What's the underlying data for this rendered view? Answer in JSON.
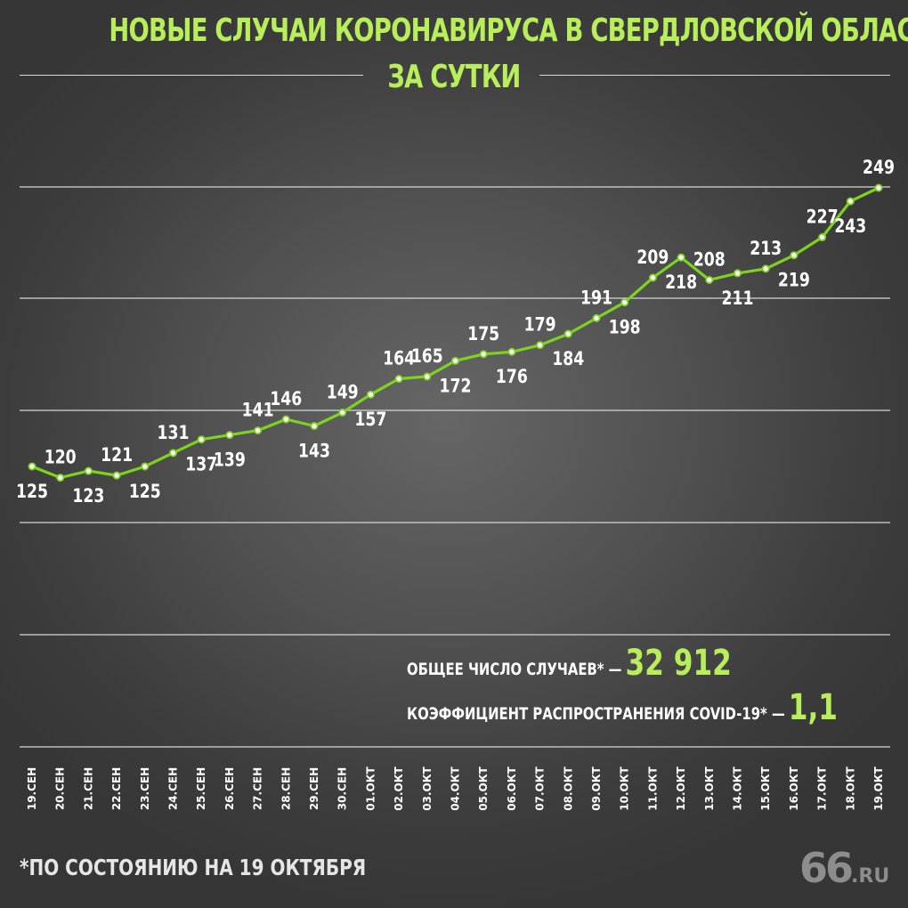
{
  "title": {
    "line1": "НОВЫЕ СЛУЧАИ КОРОНАВИРУСА В СВЕРДЛОВСКОЙ ОБЛАСТИ",
    "line2": "ЗА СУТКИ"
  },
  "chart_data": {
    "type": "line",
    "title": "НОВЫЕ СЛУЧАИ КОРОНАВИРУСА В СВЕРДЛОВСКОЙ ОБЛАСТИ ЗА СУТКИ",
    "xlabel": "",
    "ylabel": "",
    "categories": [
      "19.СЕН",
      "20.СЕН",
      "21.СЕН",
      "22.СЕН",
      "23.СЕН",
      "24.СЕН",
      "25.СЕН",
      "26.СЕН",
      "27.СЕН",
      "28.СЕН",
      "29.СЕН",
      "30.СЕН",
      "01.ОКТ",
      "02.ОКТ",
      "03.ОКТ",
      "04.ОКТ",
      "05.ОКТ",
      "06.ОКТ",
      "07.ОКТ",
      "08.ОКТ",
      "09.ОКТ",
      "10.ОКТ",
      "11.ОКТ",
      "12.ОКТ",
      "13.ОКТ",
      "14.ОКТ",
      "15.ОКТ",
      "16.ОКТ",
      "17.ОКТ",
      "18.ОКТ",
      "19.ОКТ"
    ],
    "series": [
      {
        "values": [
          125,
          120,
          123,
          121,
          125,
          131,
          137,
          139,
          141,
          146,
          143,
          149,
          157,
          164,
          165,
          172,
          175,
          176,
          179,
          184,
          191,
          198,
          209,
          218,
          208,
          211,
          213,
          219,
          227,
          243,
          249
        ]
      }
    ],
    "grid": true,
    "line_color": "#7ed321",
    "accent_color": "#b7ee5a"
  },
  "stats": {
    "total_label": "ОБЩЕЕ ЧИСЛО СЛУЧАЕВ* —",
    "total_value": "32 912",
    "ratio_label": "КОЭФФИЦИЕНТ РАСПРОСТРАНЕНИЯ COVID-19* —",
    "ratio_value": "1,1"
  },
  "footnote": "*ПО СОСТОЯНИЮ НА 19 ОКТЯБРЯ",
  "logo": {
    "num": "66",
    "domain": ".RU"
  }
}
